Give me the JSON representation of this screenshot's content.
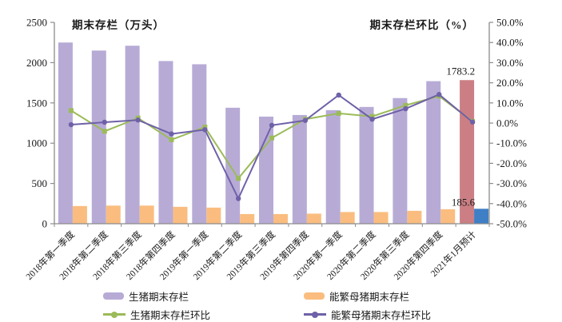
{
  "chart_data": {
    "type": "bar+line",
    "grid": false,
    "legend_position": "bottom",
    "categories": [
      "2018年第一季度",
      "2018年第二季度",
      "2018年第三季度",
      "2018年第四季度",
      "2019年第一季度",
      "2019年第二季度",
      "2019年第三季度",
      "2019年第四季度",
      "2020年第一季度",
      "2020年第二季度",
      "2020年第三季度",
      "2020年第四季度",
      "2021年1月预计"
    ],
    "left_axis": {
      "title": "期末存栏（万头）",
      "min": 0,
      "max": 2500,
      "ticks": [
        0,
        500,
        1000,
        1500,
        2000,
        2500
      ]
    },
    "right_axis": {
      "title": "期末存栏环比（%）",
      "min": -50,
      "max": 50,
      "ticks": [
        50,
        40,
        30,
        20,
        10,
        0,
        -10,
        -20,
        -30,
        -40,
        -50
      ],
      "tick_labels": [
        "50.0%",
        "40.0%",
        "30.0%",
        "20.0%",
        "10.0%",
        "0.0%",
        "-10.0%",
        "-20.0%",
        "-30.0%",
        "-40.0%",
        "-50.0%"
      ]
    },
    "series": [
      {
        "name": "生猪期末存栏",
        "type": "bar",
        "axis": "left",
        "color": "#b7abd6",
        "last_color": "#cb7f84",
        "values": [
          2250,
          2150,
          2210,
          2020,
          1980,
          1440,
          1330,
          1350,
          1410,
          1450,
          1560,
          1770,
          1783.2
        ]
      },
      {
        "name": "能繁母猪期末存栏",
        "type": "bar",
        "axis": "left",
        "color": "#fabd7f",
        "last_color": "#3e7fc6",
        "values": [
          220,
          225,
          225,
          210,
          200,
          120,
          120,
          125,
          145,
          145,
          160,
          180,
          185.6
        ]
      },
      {
        "name": "生猪期末存栏环比",
        "type": "line",
        "axis": "right",
        "color": "#9bbb59",
        "marker": "square",
        "values": [
          6.2,
          -4.1,
          2.5,
          -8.3,
          -2.0,
          -27.5,
          -7.4,
          1.9,
          4.8,
          3.3,
          8.8,
          13.4,
          0.8
        ]
      },
      {
        "name": "能繁母猪期末存栏环比",
        "type": "line",
        "axis": "right",
        "color": "#6f61a8",
        "marker": "circle",
        "values": [
          -0.8,
          0.4,
          1.5,
          -5.4,
          -3.3,
          -37.5,
          -1.1,
          1.3,
          13.9,
          1.9,
          7.1,
          14.2,
          0.5
        ]
      }
    ],
    "annotations": [
      {
        "text": "1783.2",
        "series": 0,
        "category_index": 12
      },
      {
        "text": "185.6",
        "series": 1,
        "category_index": 12
      }
    ]
  }
}
